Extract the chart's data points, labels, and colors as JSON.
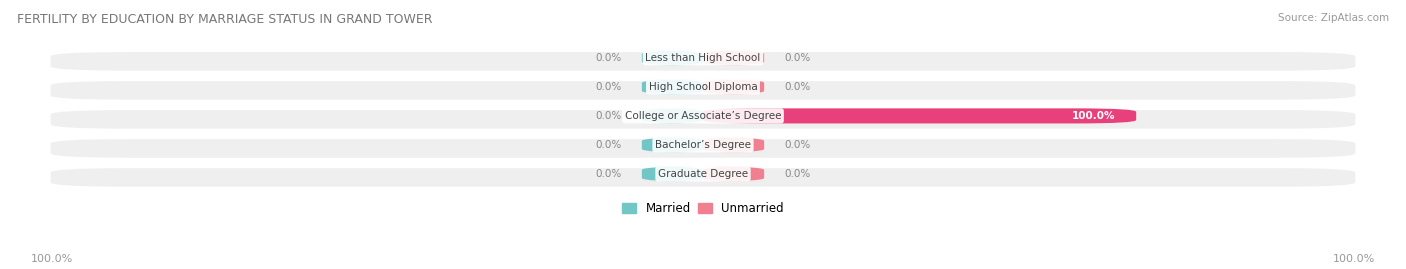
{
  "title": "FERTILITY BY EDUCATION BY MARRIAGE STATUS IN GRAND TOWER",
  "source": "Source: ZipAtlas.com",
  "categories": [
    "Less than High School",
    "High School Diploma",
    "College or Associate’s Degree",
    "Bachelor’s Degree",
    "Graduate Degree"
  ],
  "married_values": [
    0.0,
    0.0,
    0.0,
    0.0,
    0.0
  ],
  "unmarried_values": [
    0.0,
    0.0,
    100.0,
    0.0,
    0.0
  ],
  "married_color": "#72C6C6",
  "unmarried_color": "#F08090",
  "unmarried_100_color": "#E8407A",
  "row_bg_color": "#EBEBEB",
  "label_color": "#999999",
  "bottom_left_label": "100.0%",
  "bottom_right_label": "100.0%",
  "figsize": [
    14.06,
    2.69
  ],
  "dpi": 100
}
